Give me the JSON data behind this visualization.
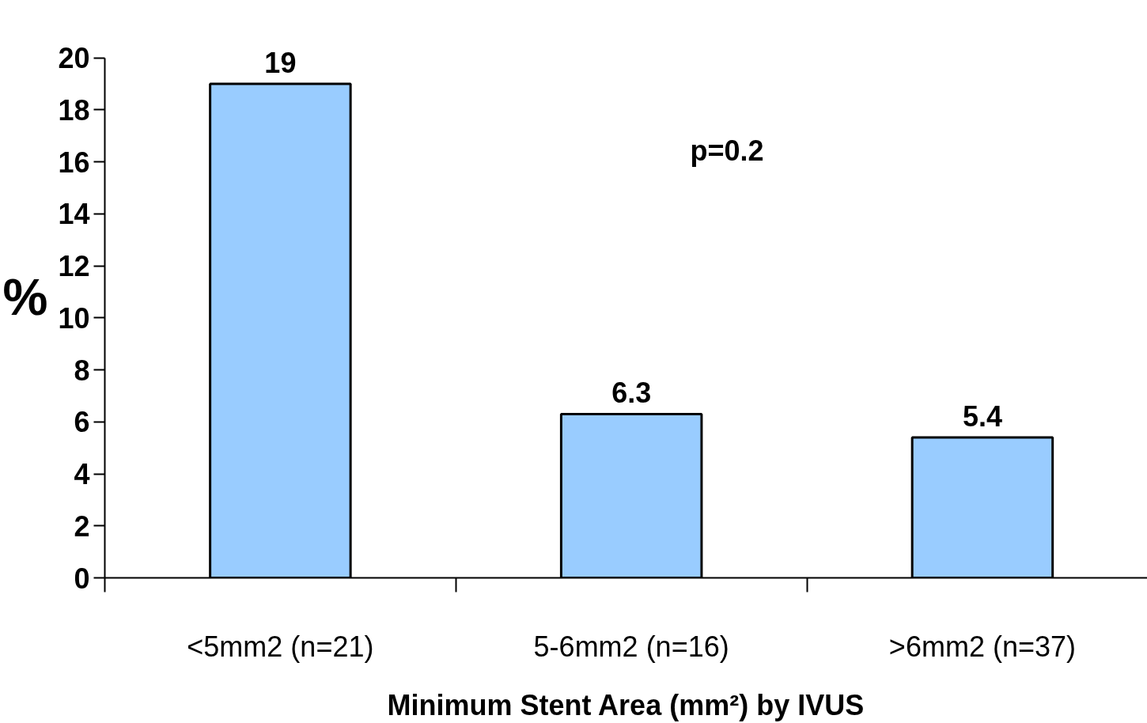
{
  "chart_data": {
    "type": "bar",
    "xlabel": "Minimum Stent Area (mm²) by IVUS",
    "ylabel": "%",
    "categories": [
      "<5mm2 (n=21)",
      "5-6mm2 (n=16)",
      ">6mm2 (n=37)"
    ],
    "values": [
      19,
      6.3,
      5.4
    ],
    "color": "#99ccff",
    "data_labels": true,
    "ylim": [
      0,
      20
    ],
    "yticks": [
      0,
      2,
      4,
      6,
      8,
      10,
      12,
      14,
      16,
      18,
      20
    ],
    "grid": false,
    "annotations": [
      "p=0.2"
    ]
  }
}
